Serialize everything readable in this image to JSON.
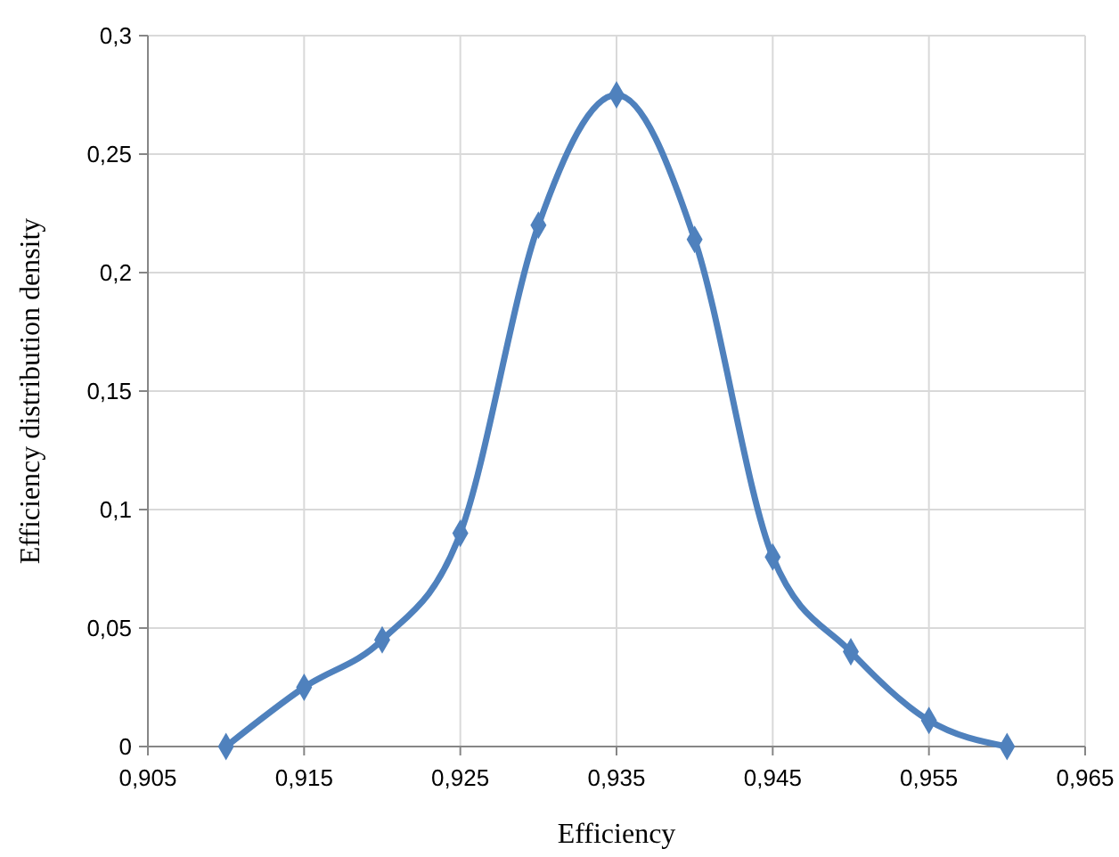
{
  "chart_data": {
    "type": "line",
    "xlabel": "Efficiency",
    "ylabel": "Efficiency distribution density",
    "x": [
      0.91,
      0.915,
      0.92,
      0.925,
      0.93,
      0.935,
      0.94,
      0.945,
      0.95,
      0.955,
      0.96
    ],
    "series": [
      {
        "color": "#4f81bd",
        "values": [
          0,
          0.025,
          0.045,
          0.09,
          0.22,
          0.275,
          0.214,
          0.08,
          0.04,
          0.011,
          0
        ]
      }
    ],
    "xlim": [
      0.905,
      0.965
    ],
    "xticks": [
      {
        "value": 0.905,
        "label": "0,905"
      },
      {
        "value": 0.915,
        "label": "0,915"
      },
      {
        "value": 0.925,
        "label": "0,925"
      },
      {
        "value": 0.935,
        "label": "0,935"
      },
      {
        "value": 0.945,
        "label": "0,945"
      },
      {
        "value": 0.955,
        "label": "0,955"
      },
      {
        "value": 0.965,
        "label": "0,965"
      }
    ],
    "ylim": [
      0,
      0.3
    ],
    "yticks": [
      0,
      {
        "value": 0.05,
        "label": "0,05"
      },
      {
        "value": 0.1,
        "label": "0,1"
      },
      {
        "value": 0.15,
        "label": "0,15"
      },
      {
        "value": 0.2,
        "label": "0,2"
      },
      {
        "value": 0.25,
        "label": "0,25"
      },
      {
        "value": 0.3,
        "label": "0,3"
      }
    ],
    "grid": true,
    "marker": "diamond",
    "line_style": "solid"
  }
}
